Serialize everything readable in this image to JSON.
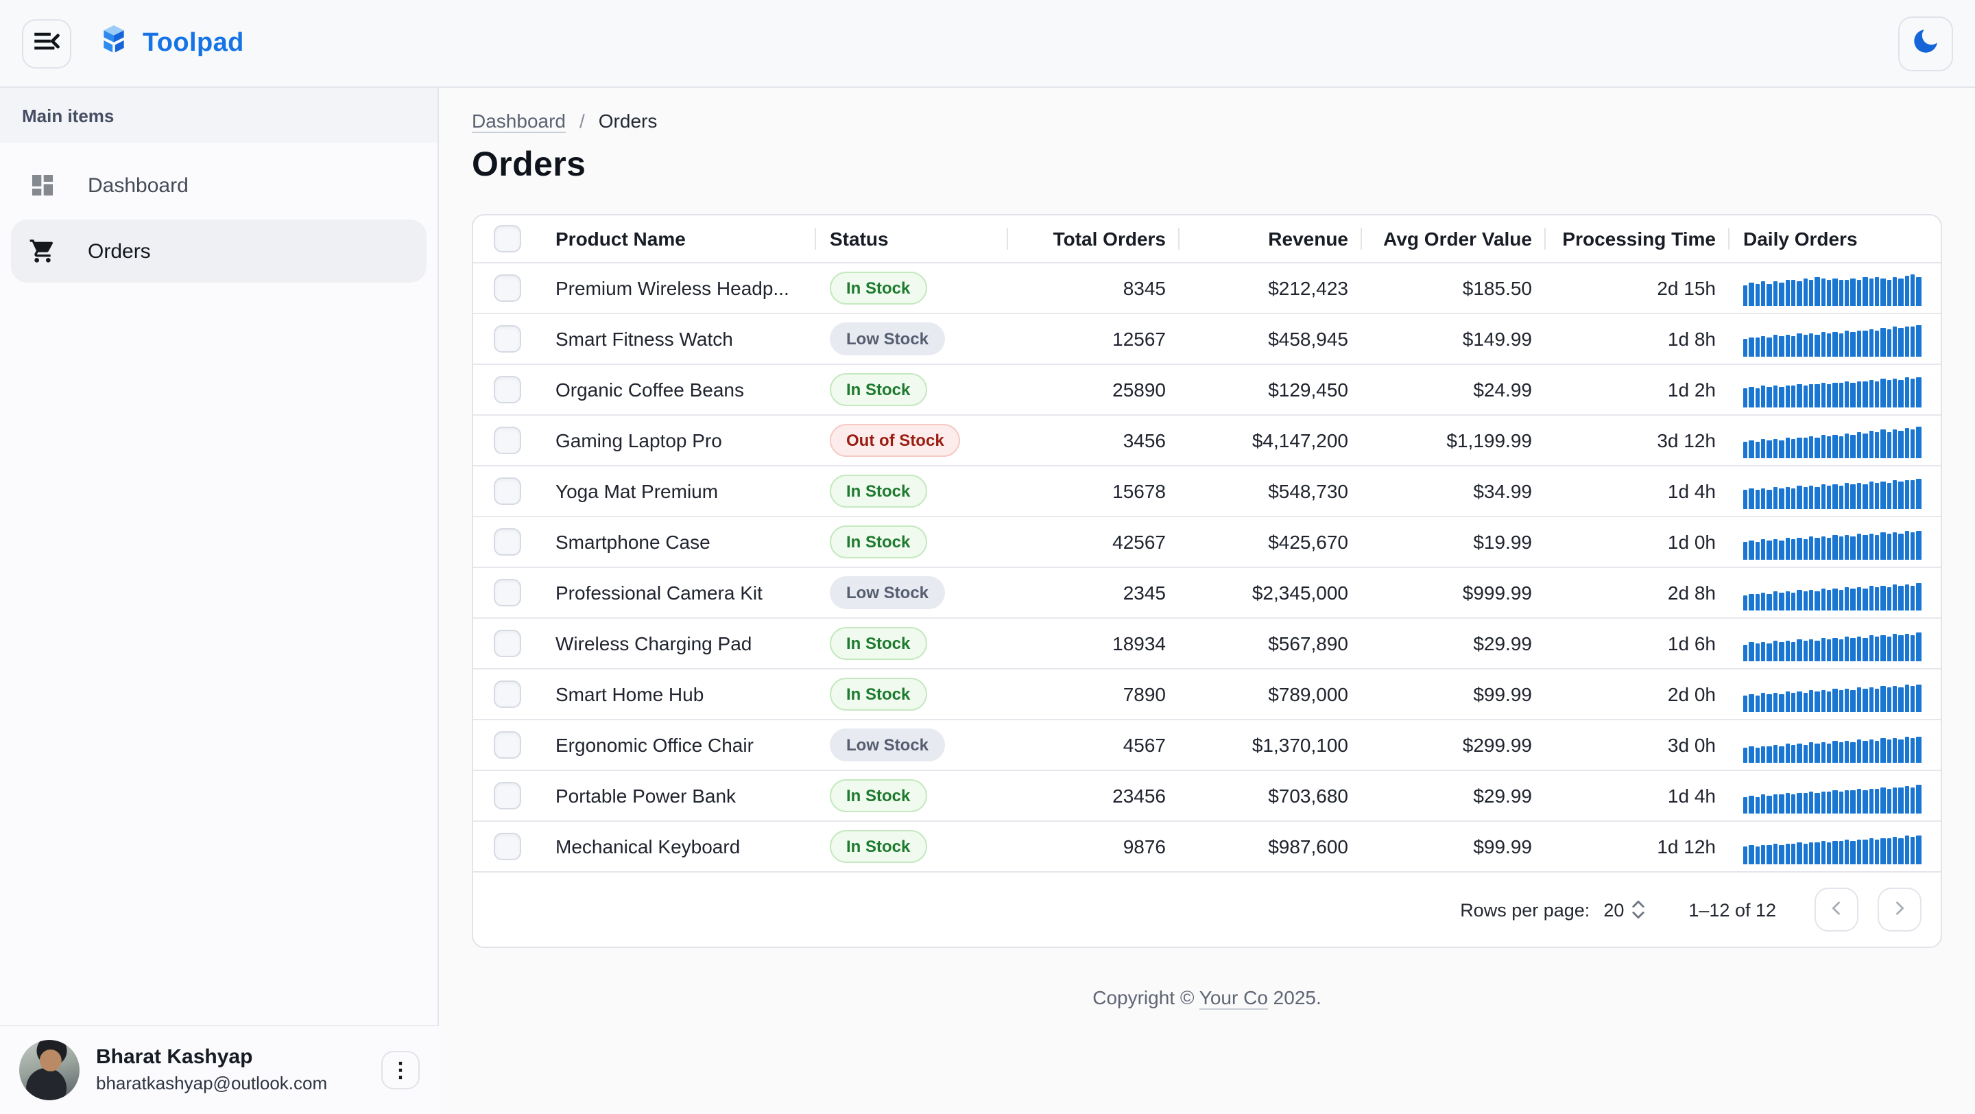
{
  "header": {
    "app_name": "Toolpad"
  },
  "sidebar": {
    "section": "Main items",
    "items": [
      {
        "label": "Dashboard",
        "icon": "dashboard-icon",
        "selected": false
      },
      {
        "label": "Orders",
        "icon": "cart-icon",
        "selected": true
      }
    ],
    "user": {
      "name": "Bharat Kashyap",
      "email": "bharatkashyap@outlook.com"
    }
  },
  "breadcrumb": {
    "parent": "Dashboard",
    "separator": "/",
    "current": "Orders"
  },
  "page": {
    "title": "Orders"
  },
  "table": {
    "columns": [
      "Product Name",
      "Status",
      "Total Orders",
      "Revenue",
      "Avg Order Value",
      "Processing Time",
      "Daily Orders"
    ],
    "rows": [
      {
        "product": "Premium Wireless Headp...",
        "status": "In Stock",
        "status_type": "in_stock",
        "total_orders": "8345",
        "revenue": "$212,423",
        "avg_order_value": "$185.50",
        "processing_time": "2d 15h",
        "spark": [
          58,
          64,
          60,
          68,
          62,
          70,
          65,
          72,
          75,
          70,
          78,
          74,
          80,
          76,
          73,
          78,
          75,
          72,
          78,
          74,
          80,
          77,
          82,
          78,
          75,
          80,
          76,
          84,
          88,
          79
        ]
      },
      {
        "product": "Smart Fitness Watch",
        "status": "Low Stock",
        "status_type": "low_stock",
        "total_orders": "12567",
        "revenue": "$458,945",
        "avg_order_value": "$149.99",
        "processing_time": "1d 8h",
        "spark": [
          50,
          55,
          52,
          58,
          54,
          60,
          56,
          62,
          58,
          64,
          60,
          66,
          63,
          68,
          65,
          70,
          67,
          72,
          70,
          75,
          72,
          78,
          74,
          80,
          77,
          83,
          80,
          86,
          83,
          90
        ]
      },
      {
        "product": "Organic Coffee Beans",
        "status": "In Stock",
        "status_type": "in_stock",
        "total_orders": "25890",
        "revenue": "$129,450",
        "avg_order_value": "$24.99",
        "processing_time": "1d 2h",
        "spark": [
          55,
          58,
          54,
          60,
          57,
          62,
          59,
          63,
          60,
          65,
          62,
          67,
          64,
          69,
          66,
          71,
          68,
          73,
          70,
          75,
          72,
          77,
          74,
          79,
          76,
          81,
          78,
          83,
          80,
          85
        ]
      },
      {
        "product": "Gaming Laptop Pro",
        "status": "Out of Stock",
        "status_type": "out_of_stock",
        "total_orders": "3456",
        "revenue": "$4,147,200",
        "avg_order_value": "$1,199.99",
        "processing_time": "3d 12h",
        "spark": [
          45,
          50,
          47,
          52,
          49,
          55,
          51,
          57,
          53,
          59,
          56,
          62,
          58,
          64,
          60,
          67,
          63,
          70,
          66,
          73,
          69,
          76,
          72,
          79,
          75,
          82,
          78,
          85,
          81,
          88
        ]
      },
      {
        "product": "Yoga Mat Premium",
        "status": "In Stock",
        "status_type": "in_stock",
        "total_orders": "15678",
        "revenue": "$548,730",
        "avg_order_value": "$34.99",
        "processing_time": "1d 4h",
        "spark": [
          52,
          56,
          53,
          58,
          55,
          60,
          57,
          62,
          59,
          64,
          61,
          66,
          63,
          68,
          65,
          70,
          67,
          72,
          69,
          74,
          71,
          76,
          73,
          78,
          75,
          80,
          77,
          82,
          79,
          84
        ]
      },
      {
        "product": "Smartphone Case",
        "status": "In Stock",
        "status_type": "in_stock",
        "total_orders": "42567",
        "revenue": "$425,670",
        "avg_order_value": "$19.99",
        "processing_time": "1d 0h",
        "spark": [
          50,
          54,
          51,
          56,
          53,
          58,
          55,
          60,
          57,
          62,
          59,
          64,
          61,
          66,
          63,
          68,
          65,
          70,
          67,
          72,
          69,
          74,
          71,
          76,
          73,
          78,
          75,
          80,
          77,
          82
        ]
      },
      {
        "product": "Professional Camera Kit",
        "status": "Low Stock",
        "status_type": "low_stock",
        "total_orders": "2345",
        "revenue": "$2,345,000",
        "avg_order_value": "$999.99",
        "processing_time": "2d 8h",
        "spark": [
          44,
          48,
          45,
          50,
          47,
          52,
          49,
          54,
          51,
          56,
          53,
          58,
          55,
          60,
          57,
          62,
          59,
          64,
          61,
          66,
          63,
          68,
          65,
          70,
          67,
          72,
          69,
          74,
          71,
          76
        ]
      },
      {
        "product": "Wireless Charging Pad",
        "status": "In Stock",
        "status_type": "in_stock",
        "total_orders": "18934",
        "revenue": "$567,890",
        "avg_order_value": "$29.99",
        "processing_time": "1d 6h",
        "spark": [
          48,
          52,
          49,
          54,
          51,
          56,
          53,
          58,
          55,
          60,
          57,
          62,
          59,
          64,
          61,
          66,
          63,
          68,
          65,
          70,
          67,
          72,
          69,
          74,
          71,
          76,
          73,
          78,
          75,
          80
        ]
      },
      {
        "product": "Smart Home Hub",
        "status": "In Stock",
        "status_type": "in_stock",
        "total_orders": "7890",
        "revenue": "$789,000",
        "avg_order_value": "$99.99",
        "processing_time": "2d 0h",
        "spark": [
          46,
          50,
          47,
          52,
          49,
          54,
          51,
          56,
          53,
          58,
          55,
          60,
          57,
          62,
          59,
          64,
          61,
          66,
          63,
          68,
          65,
          70,
          67,
          72,
          69,
          74,
          71,
          76,
          73,
          78
        ]
      },
      {
        "product": "Ergonomic Office Chair",
        "status": "Low Stock",
        "status_type": "low_stock",
        "total_orders": "4567",
        "revenue": "$1,370,100",
        "avg_order_value": "$299.99",
        "processing_time": "3d 0h",
        "spark": [
          42,
          46,
          43,
          48,
          45,
          50,
          47,
          52,
          49,
          54,
          51,
          56,
          53,
          58,
          55,
          60,
          57,
          62,
          59,
          64,
          61,
          66,
          63,
          68,
          65,
          70,
          67,
          72,
          69,
          74
        ]
      },
      {
        "product": "Portable Power Bank",
        "status": "In Stock",
        "status_type": "in_stock",
        "total_orders": "23456",
        "revenue": "$703,680",
        "avg_order_value": "$29.99",
        "processing_time": "1d 4h",
        "spark": [
          47,
          51,
          48,
          53,
          50,
          55,
          52,
          57,
          54,
          59,
          56,
          61,
          58,
          63,
          60,
          65,
          62,
          67,
          64,
          69,
          66,
          71,
          68,
          73,
          70,
          75,
          72,
          77,
          74,
          79
        ]
      },
      {
        "product": "Mechanical Keyboard",
        "status": "In Stock",
        "status_type": "in_stock",
        "total_orders": "9876",
        "revenue": "$987,600",
        "avg_order_value": "$99.99",
        "processing_time": "1d 12h",
        "spark": [
          49,
          53,
          50,
          55,
          52,
          57,
          54,
          59,
          56,
          61,
          58,
          63,
          60,
          65,
          62,
          67,
          64,
          69,
          66,
          71,
          68,
          73,
          70,
          75,
          72,
          77,
          74,
          79,
          76,
          81
        ]
      }
    ]
  },
  "pagination": {
    "rows_per_page_label": "Rows per page:",
    "rows_per_page": "20",
    "range": "1–12 of 12"
  },
  "footer": {
    "prefix": "Copyright © ",
    "company": "Your Co",
    "suffix": " 2025."
  },
  "colors": {
    "brand_blue": "#1673E6",
    "spark_bar": "#1976D2",
    "in_stock": "#1D7A2E",
    "low_stock": "#555E70",
    "out_of_stock": "#9B1D12"
  }
}
